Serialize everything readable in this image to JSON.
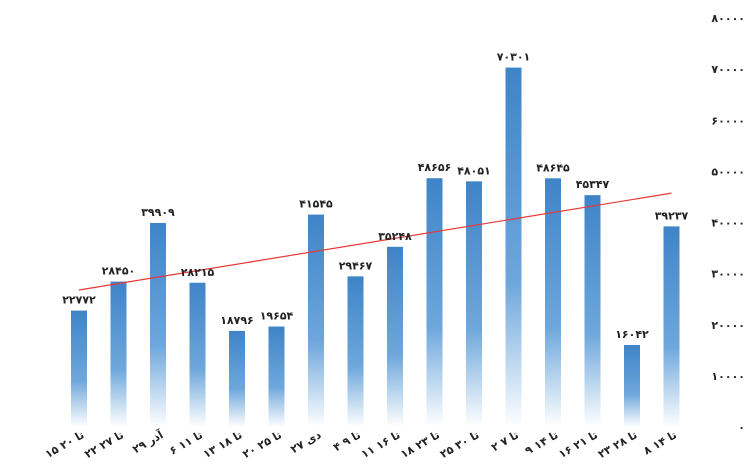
{
  "chart_data": {
    "type": "bar",
    "categories": [
      "۱۵ تا ۲۰",
      "۲۲ تا ۲۷",
      "۲۹ آذر",
      "۶ تا ۱۱",
      "۱۳ تا ۱۸",
      "۲۰ تا ۲۵",
      "۲۷ دی",
      "۴ تا ۹",
      "۱۱ تا ۱۶",
      "۱۸ تا ۲۳",
      "۲۵ تا ۳۰",
      "۲ تا ۷",
      "۹ تا ۱۴",
      "۱۶ تا ۲۱",
      "۲۳ تا ۲۸",
      "۸ تا ۱۴"
    ],
    "values": [
      22772,
      28450,
      39909,
      28215,
      18796,
      19654,
      41545,
      29467,
      35248,
      48656,
      48051,
      70301,
      48645,
      45347,
      16042,
      39237
    ],
    "value_labels": [
      "۲۲۷۷۲",
      "۲۸۴۵۰",
      "۳۹۹۰۹",
      "۲۸۲۱۵",
      "۱۸۷۹۶",
      "۱۹۶۵۴",
      "۴۱۵۴۵",
      "۲۹۴۶۷",
      "۳۵۲۴۸",
      "۴۸۶۵۶",
      "۴۸۰۵۱",
      "۷۰۳۰۱",
      "۴۸۶۴۵",
      "۴۵۳۴۷",
      "۱۶۰۴۲",
      "۳۹۲۳۷"
    ],
    "ylim": [
      0,
      80000
    ],
    "yticks": [
      0,
      10000,
      20000,
      30000,
      40000,
      50000,
      60000,
      70000,
      80000
    ],
    "ytick_labels": [
      "۰",
      "۱۰۰۰۰",
      "۲۰۰۰۰",
      "۳۰۰۰۰",
      "۴۰۰۰۰",
      "۵۰۰۰۰",
      "۶۰۰۰۰",
      "۷۰۰۰۰",
      "۸۰۰۰۰"
    ],
    "trendline": {
      "type": "linear",
      "color": "#e53935"
    },
    "bar_color": "#4a8cce",
    "grid": false,
    "title": "",
    "xlabel": "",
    "ylabel": ""
  }
}
